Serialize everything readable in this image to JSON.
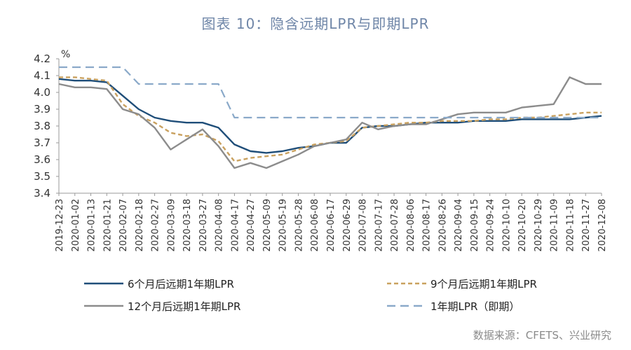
{
  "title": "图表 10：隐含远期LPR与即期LPR",
  "source": "数据来源：CFETS、兴业研究",
  "chart_data": {
    "type": "line",
    "title": "图表 10：隐含远期LPR与即期LPR",
    "y_unit": "%",
    "ylim": [
      3.4,
      4.2
    ],
    "yticks": [
      3.4,
      3.5,
      3.6,
      3.7,
      3.8,
      3.9,
      4.0,
      4.1,
      4.2
    ],
    "ytick_labels": [
      "3.4",
      "3.5",
      "3.6",
      "3.7",
      "3.8",
      "3.9",
      "4.0",
      "4.1",
      "4.2"
    ],
    "x_tick_labels": [
      "2019-12-23",
      "2020-01-02",
      "2020-01-13",
      "2020-01-21",
      "2020-02-07",
      "2020-02-18",
      "2020-02-27",
      "2020-03-09",
      "2020-03-18",
      "2020-03-27",
      "2020-04-08",
      "2020-04-17",
      "2020-04-27",
      "2020-05-09",
      "2020-05-19",
      "2020-05-28",
      "2020-06-08",
      "2020-06-17",
      "2020-06-29",
      "2020-07-08",
      "2020-07-17",
      "2020-07-28",
      "2020-08-06",
      "2020-08-17",
      "2020-08-26",
      "2020-09-04",
      "2020-09-15",
      "2020-09-24",
      "2020-10-10",
      "2020-10-20",
      "2020-10-29",
      "2020-11-09",
      "2020-11-18",
      "2020-11-27",
      "2020-12-08"
    ],
    "grid": false,
    "legend_position": "bottom",
    "series": [
      {
        "name": "6个月后远期1年期LPR",
        "color": "#1f4e79",
        "style": "solid",
        "values": [
          4.08,
          4.07,
          4.07,
          4.06,
          3.98,
          3.9,
          3.85,
          3.83,
          3.82,
          3.82,
          3.79,
          3.69,
          3.65,
          3.64,
          3.65,
          3.67,
          3.68,
          3.7,
          3.7,
          3.79,
          3.8,
          3.8,
          3.81,
          3.82,
          3.82,
          3.82,
          3.83,
          3.83,
          3.83,
          3.84,
          3.84,
          3.84,
          3.84,
          3.85,
          3.86
        ]
      },
      {
        "name": "9个月后远期1年期LPR",
        "color": "#c9a15f",
        "style": "dashed",
        "values": [
          4.09,
          4.09,
          4.08,
          4.07,
          3.93,
          3.86,
          3.82,
          3.76,
          3.74,
          3.75,
          3.71,
          3.59,
          3.61,
          3.62,
          3.63,
          3.66,
          3.69,
          3.7,
          3.71,
          3.79,
          3.8,
          3.81,
          3.82,
          3.82,
          3.83,
          3.83,
          3.83,
          3.84,
          3.84,
          3.85,
          3.85,
          3.86,
          3.87,
          3.88,
          3.88
        ]
      },
      {
        "name": "12个月后远期1年期LPR",
        "color": "#8c8c8c",
        "style": "solid",
        "values": [
          4.05,
          4.03,
          4.03,
          4.02,
          3.9,
          3.87,
          3.79,
          3.66,
          3.72,
          3.78,
          3.68,
          3.55,
          3.58,
          3.55,
          3.59,
          3.63,
          3.68,
          3.7,
          3.72,
          3.82,
          3.78,
          3.8,
          3.81,
          3.81,
          3.84,
          3.87,
          3.88,
          3.88,
          3.88,
          3.91,
          3.92,
          3.93,
          4.09,
          4.05,
          4.05
        ]
      },
      {
        "name": "1年期LPR（即期）",
        "color": "#8aa9c9",
        "style": "dashed",
        "values": [
          4.15,
          4.15,
          4.15,
          4.15,
          4.15,
          4.05,
          4.05,
          4.05,
          4.05,
          4.05,
          4.05,
          3.85,
          3.85,
          3.85,
          3.85,
          3.85,
          3.85,
          3.85,
          3.85,
          3.85,
          3.85,
          3.85,
          3.85,
          3.85,
          3.85,
          3.85,
          3.85,
          3.85,
          3.85,
          3.85,
          3.85,
          3.85,
          3.85,
          3.85,
          3.85
        ]
      }
    ]
  }
}
